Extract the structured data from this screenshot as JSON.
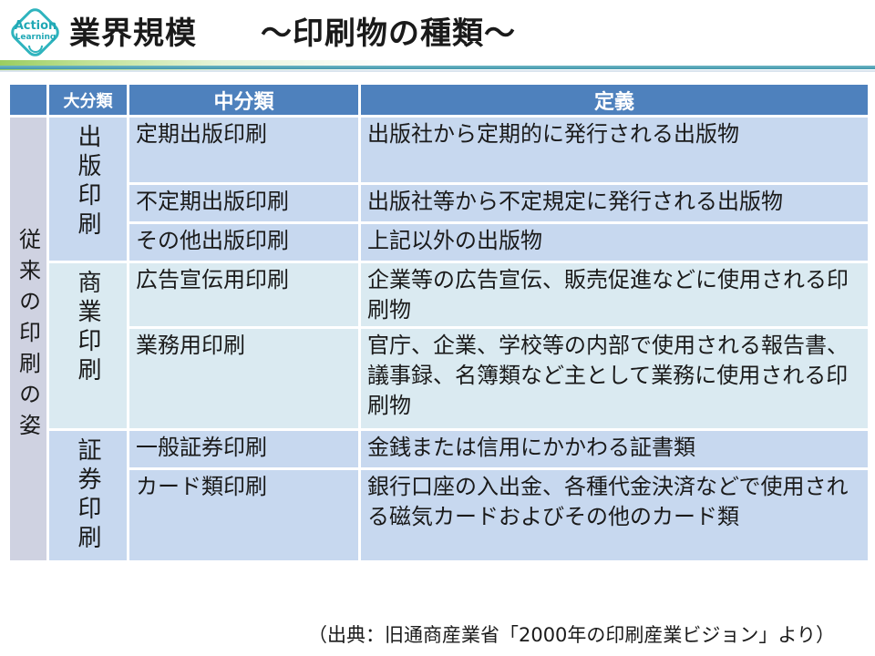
{
  "logo": {
    "line1": "Action",
    "line2": "Learning"
  },
  "title": "業界規模　　～印刷物の種類～",
  "table": {
    "headers": {
      "major": "大分類",
      "middle": "中分類",
      "definition": "定義"
    },
    "row_label": "従来の印刷の姿",
    "groups": [
      {
        "major": "出版印刷",
        "rows": [
          {
            "middle": "定期出版印刷",
            "definition": "出版社から定期的に発行される出版物"
          },
          {
            "middle": "不定期出版印刷",
            "definition": "出版社等から不定規定に発行される出版物"
          },
          {
            "middle": "その他出版印刷",
            "definition": "上記以外の出版物"
          }
        ]
      },
      {
        "major": "商業印刷",
        "rows": [
          {
            "middle": "広告宣伝用印刷",
            "definition": "企業等の広告宣伝、販売促進などに使用される印刷物"
          },
          {
            "middle": "業務用印刷",
            "definition": "官庁、企業、学校等の内部で使用される報告書、議事録、名簿類など主として業務に使用される印刷物"
          }
        ]
      },
      {
        "major": "証券印刷",
        "rows": [
          {
            "middle": "一般証券印刷",
            "definition": "金銭または信用にかかわる証書類"
          },
          {
            "middle": "カード類印刷",
            "definition": "銀行口座の入出金、各種代金決済などで使用される磁気カードおよびその他のカード類"
          }
        ]
      }
    ]
  },
  "footer": {
    "source": "（出典：旧通商産業省「2000年の印刷産業ビジョン」より）"
  },
  "colors": {
    "header_bg": "#4e81bd",
    "band_blue": "#c7d8ef",
    "band_cyan": "#daeaf1",
    "row_label_bg": "#cfd2e1",
    "accent_teal": "#4397ac",
    "accent_green": "#9acd60",
    "logo_teal": "#2fb4be",
    "header_text": "#ffffff",
    "body_text": "#1a1a1a"
  }
}
